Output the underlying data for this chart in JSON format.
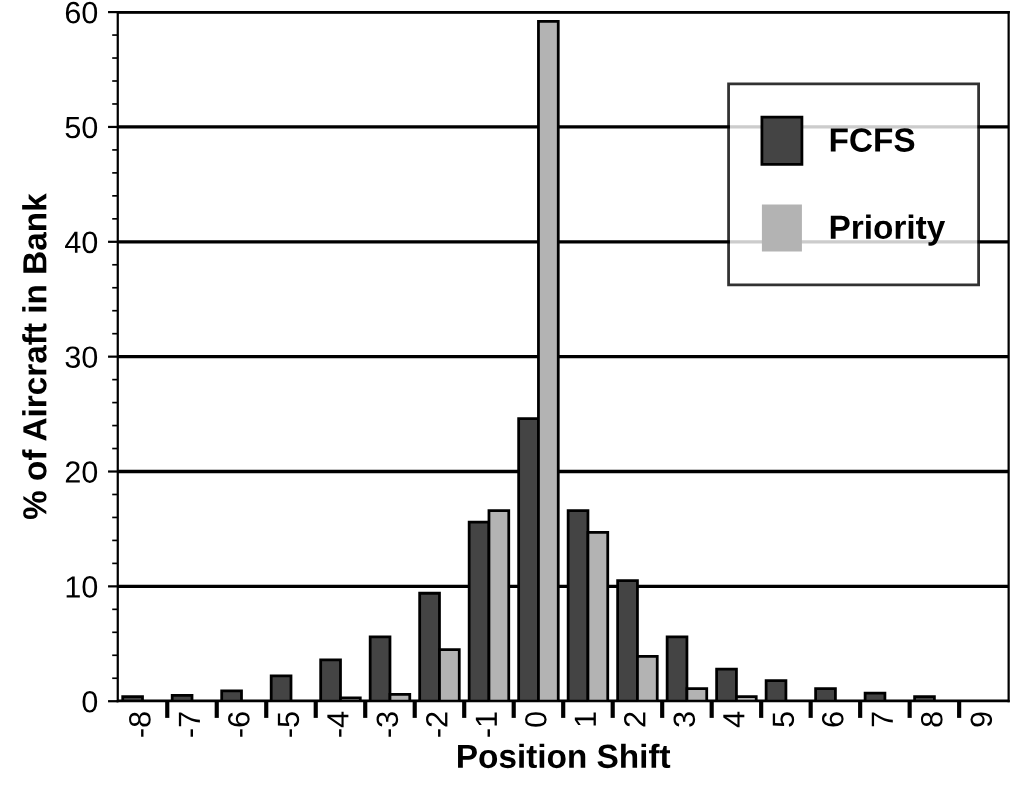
{
  "chart_data": {
    "type": "bar",
    "xlabel": "Position Shift",
    "ylabel": "% of Aircraft in Bank",
    "categories": [
      "-8",
      "-7",
      "-6",
      "-5",
      "-4",
      "-3",
      "-2",
      "-1",
      "0",
      "1",
      "2",
      "3",
      "4",
      "5",
      "6",
      "7",
      "8",
      "9"
    ],
    "series": [
      {
        "name": "FCFS",
        "color": "#444444",
        "values": [
          0.4,
          0.5,
          0.9,
          2.2,
          3.6,
          5.6,
          9.4,
          15.6,
          24.6,
          16.6,
          10.5,
          5.6,
          2.8,
          1.8,
          1.1,
          0.7,
          0.4,
          0
        ]
      },
      {
        "name": "Priority",
        "color": "#b3b3b3",
        "values": [
          0,
          0,
          0,
          0,
          0.3,
          0.6,
          4.5,
          16.6,
          59.2,
          14.7,
          3.9,
          1.1,
          0.4,
          0,
          0,
          0,
          0,
          0
        ]
      }
    ],
    "ylim": [
      0,
      60
    ],
    "yticks": [
      0,
      10,
      20,
      30,
      40,
      50,
      60
    ],
    "grid": "y",
    "legend": "top right"
  }
}
